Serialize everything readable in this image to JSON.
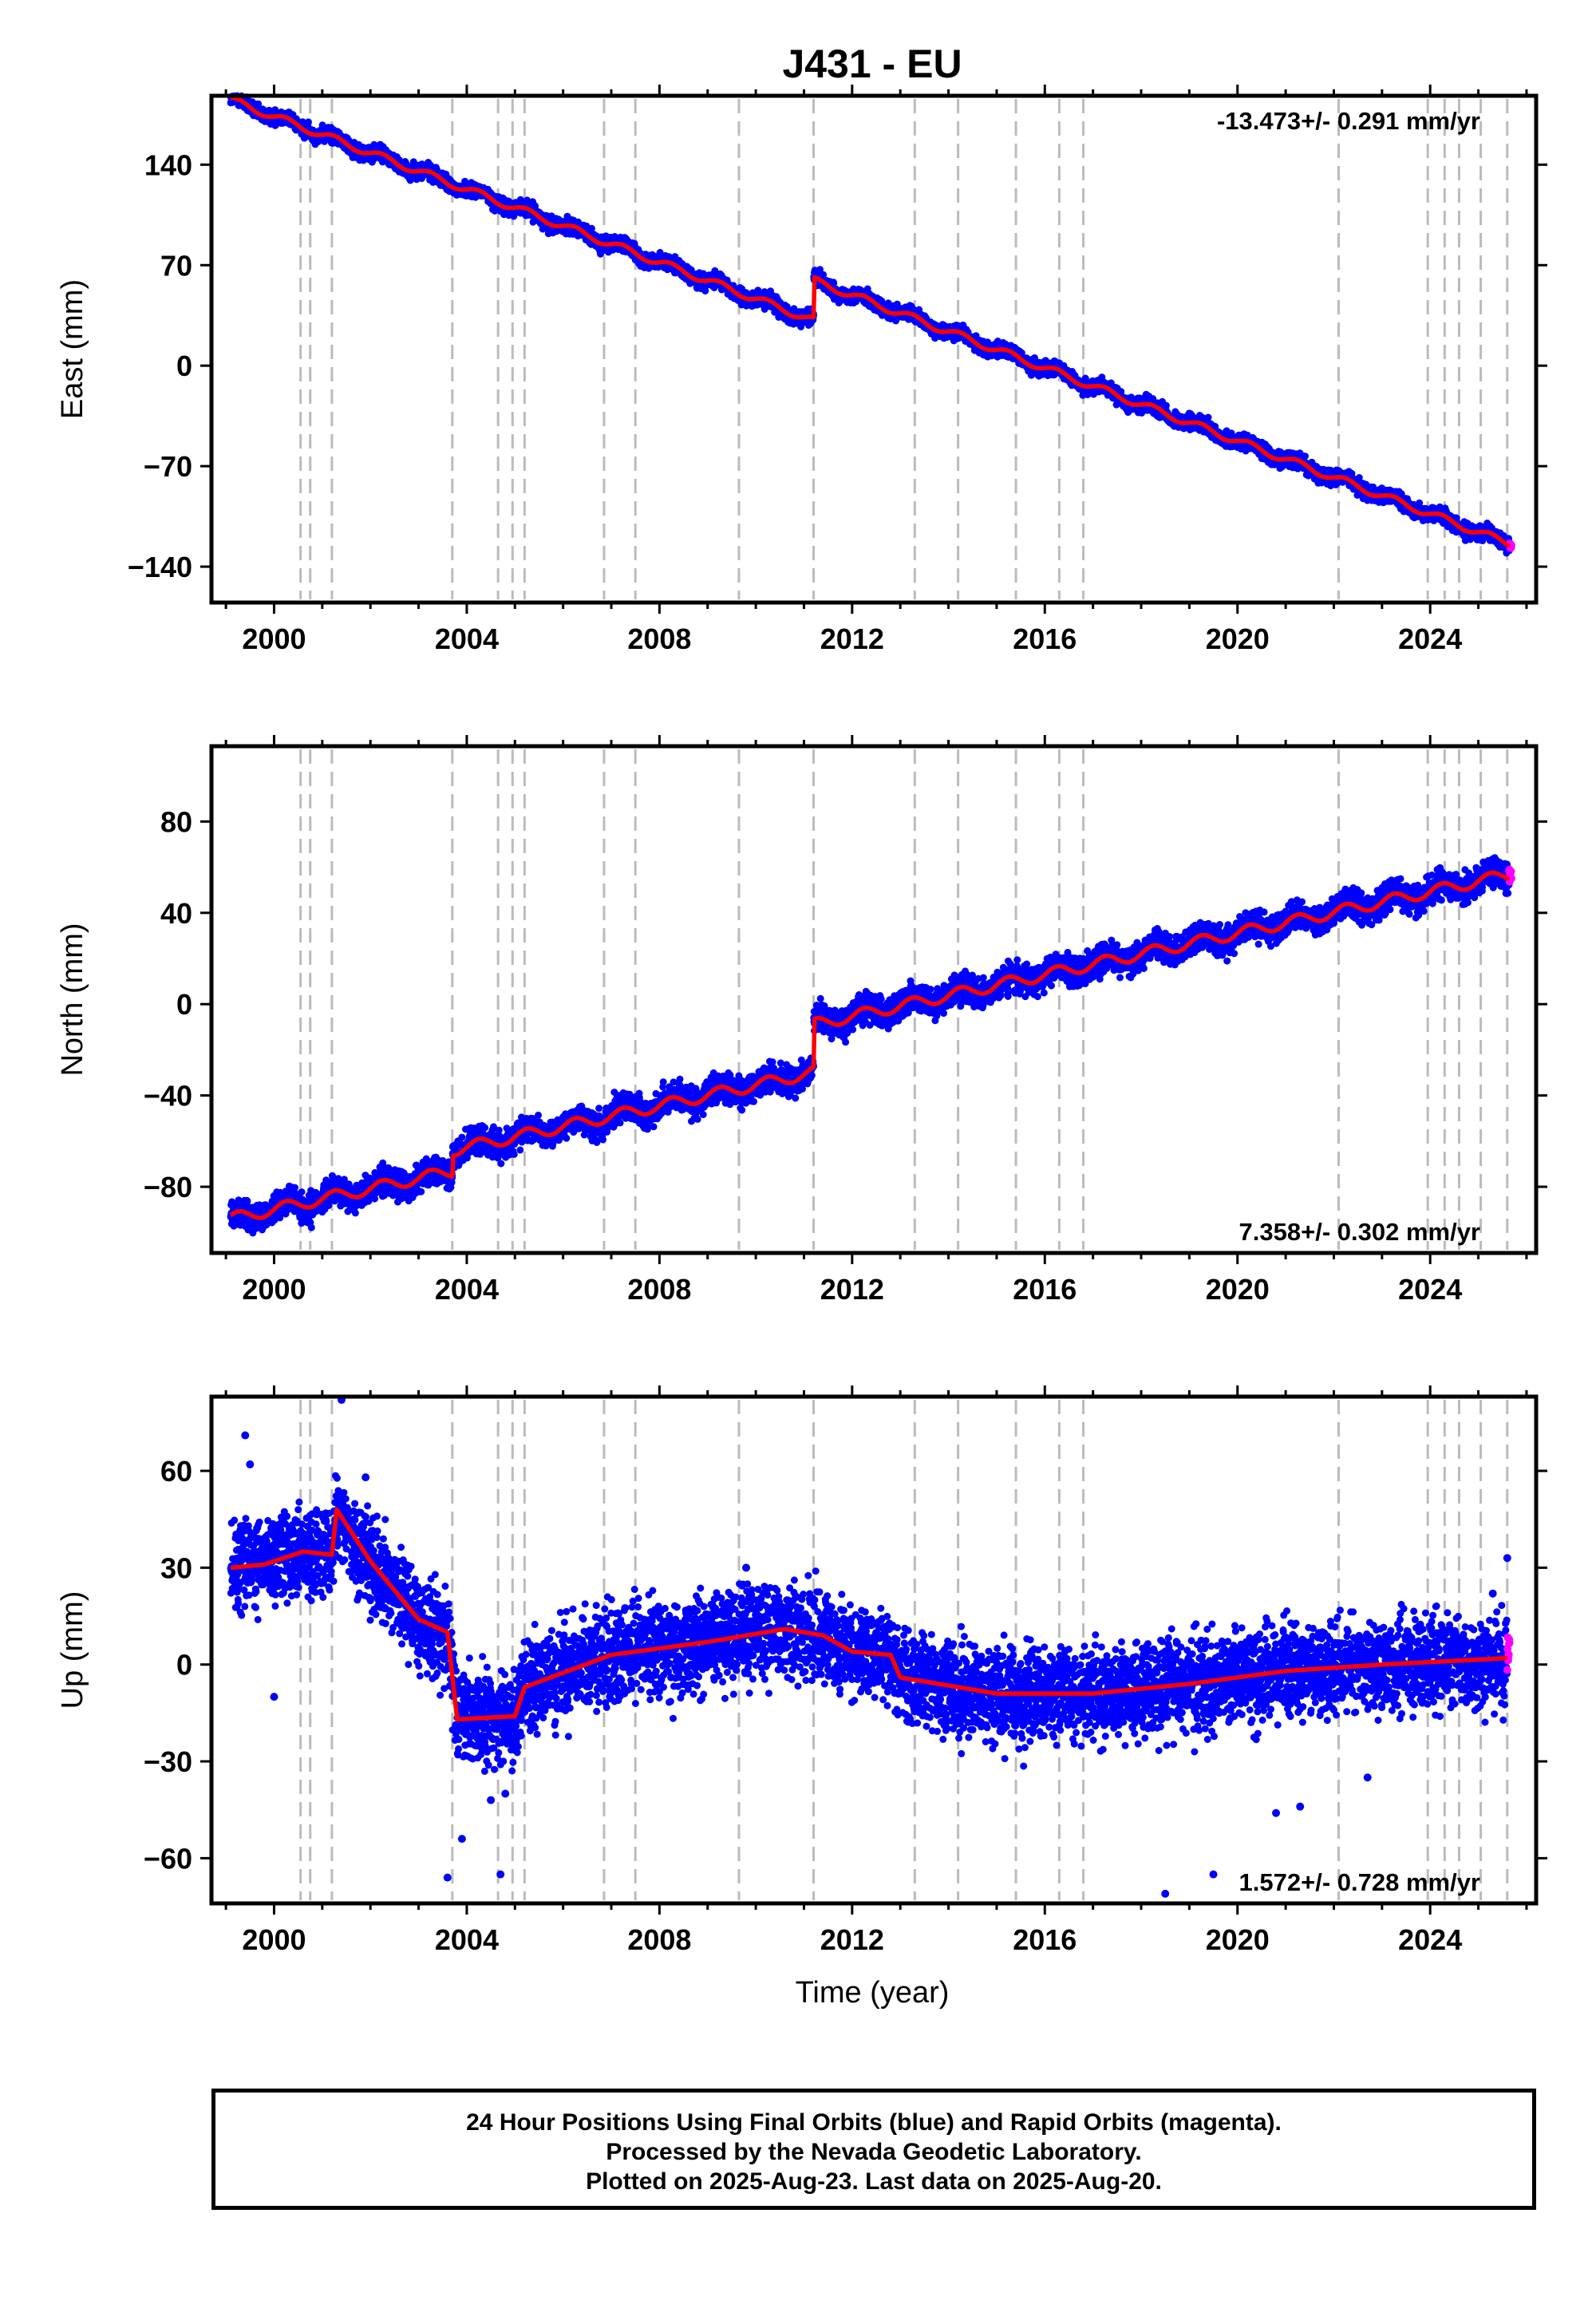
{
  "title": "J431 - EU",
  "x_axis_label": "Time (year)",
  "footer": {
    "line1": "24 Hour Positions Using Final Orbits (blue) and Rapid Orbits (magenta).",
    "line2": "Processed by the Nevada Geodetic Laboratory.",
    "line3": "Plotted on 2025-Aug-23. Last data on 2025-Aug-20."
  },
  "colors": {
    "final_orbits": "#0000ff",
    "rapid_orbits": "#ff00ff",
    "model_fit": "#ff0000",
    "event_lines": "#bbbbbb"
  },
  "chart_data": [
    {
      "type": "scatter",
      "name": "east",
      "ylabel": "East (mm)",
      "rate_text": "-13.473+/- 0.291 mm/yr",
      "rate_position": "top-right",
      "xlim": [
        1998.7,
        2026.2
      ],
      "ylim": [
        -165,
        188
      ],
      "yticks": [
        140,
        70,
        0,
        -70,
        -140
      ],
      "xticks": [
        2000,
        2004,
        2008,
        2012,
        2016,
        2020,
        2024
      ],
      "fit": {
        "start": 1999.1,
        "end": 2025.64,
        "y0": 185,
        "slope": -12.7,
        "steps": [
          {
            "t": 2011.2,
            "dy": 28
          }
        ],
        "seasonal": 2.5,
        "noise": 2.5
      },
      "outliers": []
    },
    {
      "type": "scatter",
      "name": "north",
      "ylabel": "North (mm)",
      "rate_text": "7.358+/- 0.302 mm/yr",
      "rate_position": "bottom-right",
      "xlim": [
        1998.7,
        2026.2
      ],
      "ylim": [
        -109,
        113
      ],
      "yticks": [
        80,
        40,
        0,
        -40,
        -80
      ],
      "xticks": [
        2000,
        2004,
        2008,
        2012,
        2016,
        2020,
        2024
      ],
      "fit": {
        "start": 1999.1,
        "end": 2025.64,
        "y0": -94,
        "slope": 4.55,
        "steps": [
          {
            "t": 2003.7,
            "dy": 9
          },
          {
            "t": 2011.2,
            "dy": 21
          }
        ],
        "seasonal": 2.5,
        "noise": 3
      },
      "outliers": []
    },
    {
      "type": "scatter",
      "name": "up",
      "ylabel": "Up (mm)",
      "rate_text": "1.572+/- 0.728 mm/yr",
      "rate_position": "bottom-right",
      "xlim": [
        1998.7,
        2026.2
      ],
      "ylim": [
        -74,
        83
      ],
      "yticks": [
        60,
        30,
        0,
        -30,
        -60
      ],
      "xticks": [
        2000,
        2004,
        2008,
        2012,
        2016,
        2020,
        2024
      ],
      "fit_points": [
        [
          1999.1,
          30
        ],
        [
          1999.8,
          31
        ],
        [
          2000.6,
          35
        ],
        [
          2001.2,
          34
        ],
        [
          2001.3,
          48
        ],
        [
          2002.0,
          32
        ],
        [
          2003.0,
          14
        ],
        [
          2003.6,
          10
        ],
        [
          2003.8,
          -17
        ],
        [
          2005.0,
          -16
        ],
        [
          2005.2,
          -7
        ],
        [
          2007.0,
          3
        ],
        [
          2009.0,
          7
        ],
        [
          2010.6,
          11
        ],
        [
          2011.4,
          9
        ],
        [
          2012.0,
          4
        ],
        [
          2012.8,
          3
        ],
        [
          2013.0,
          -4
        ],
        [
          2015.0,
          -9
        ],
        [
          2017.0,
          -9
        ],
        [
          2019.0,
          -6
        ],
        [
          2021.0,
          -2
        ],
        [
          2023.0,
          0
        ],
        [
          2025.6,
          2
        ]
      ],
      "noise": 7,
      "outliers": [
        [
          1999.4,
          71
        ],
        [
          1999.5,
          62
        ],
        [
          2001.4,
          82
        ],
        [
          2001.9,
          58
        ],
        [
          2000.0,
          -10
        ],
        [
          2003.6,
          -66
        ],
        [
          2003.9,
          -54
        ],
        [
          2004.7,
          -65
        ],
        [
          2004.5,
          -42
        ],
        [
          2004.8,
          -40
        ],
        [
          2009.8,
          30
        ],
        [
          2018.5,
          -71
        ],
        [
          2019.5,
          -65
        ],
        [
          2020.8,
          -46
        ],
        [
          2021.3,
          -44
        ],
        [
          2022.7,
          -35
        ],
        [
          2025.3,
          22
        ],
        [
          2025.6,
          33
        ]
      ]
    }
  ],
  "event_lines": [
    2000.55,
    2000.75,
    2001.2,
    2003.7,
    2004.65,
    2004.95,
    2005.2,
    2006.85,
    2007.5,
    2009.65,
    2011.2,
    2013.3,
    2014.2,
    2015.4,
    2016.3,
    2016.8,
    2022.1,
    2023.95,
    2024.3,
    2024.6,
    2025.05,
    2025.6
  ]
}
